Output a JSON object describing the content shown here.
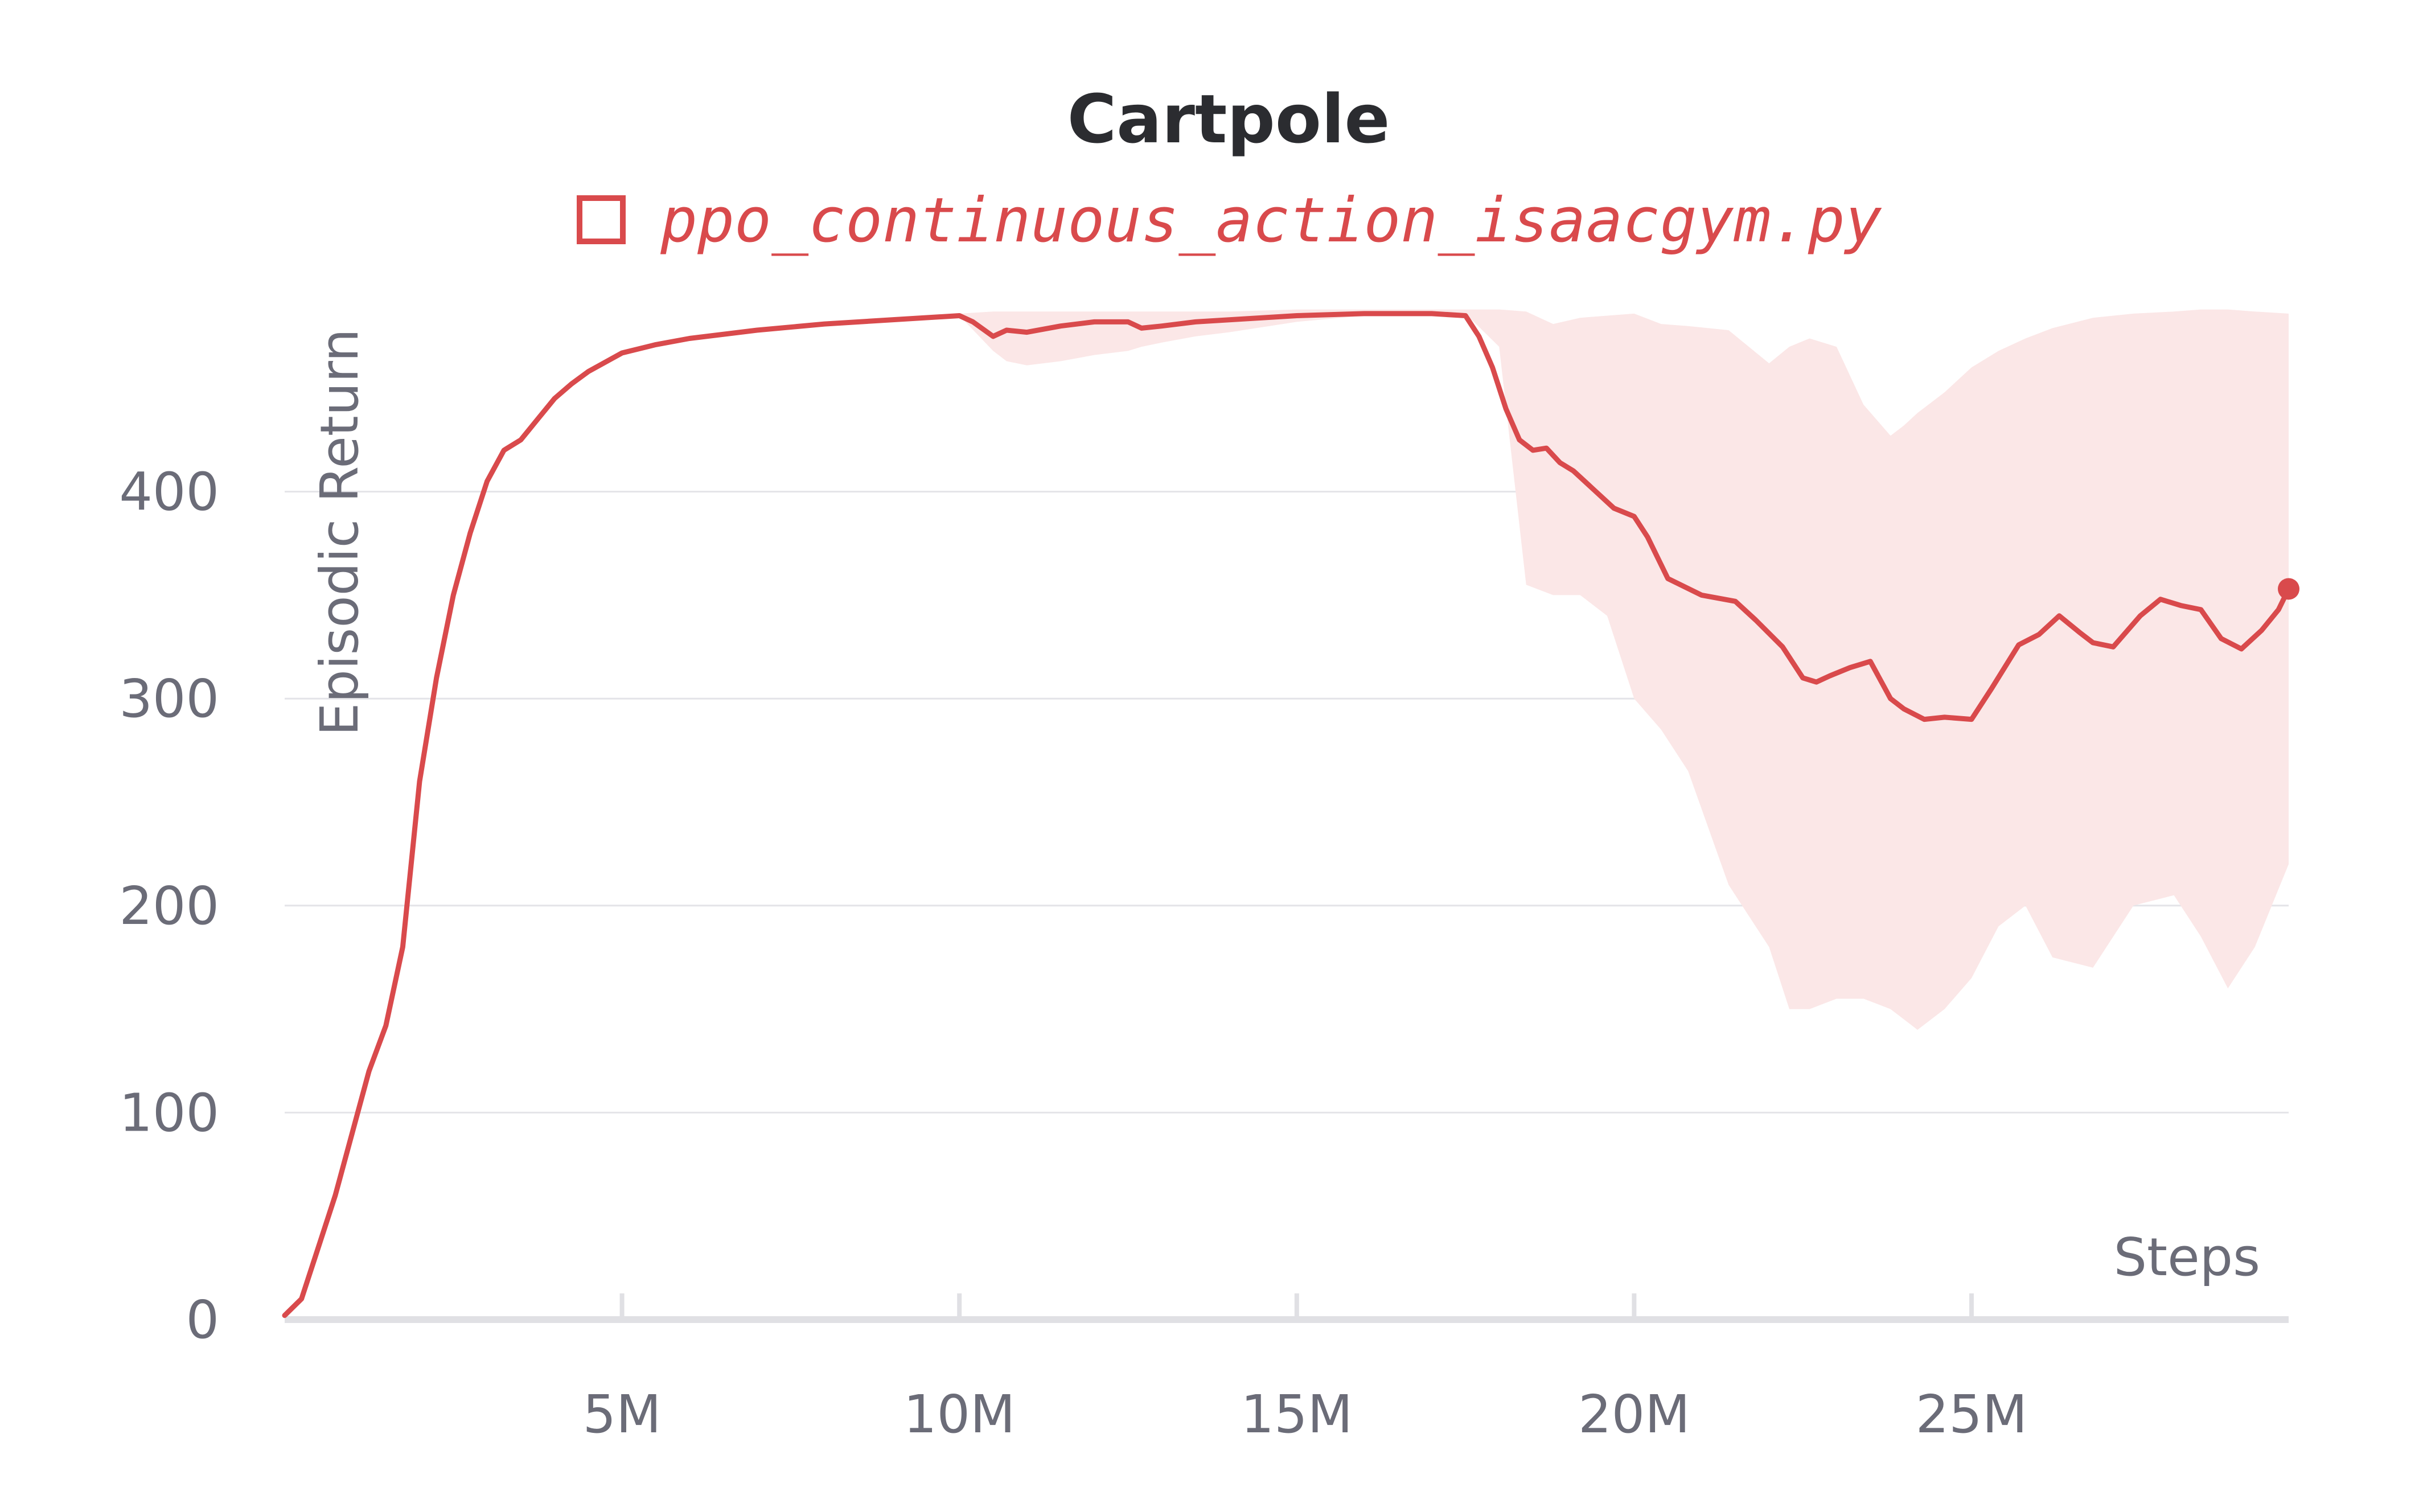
{
  "chart_data": {
    "type": "line",
    "title": "Cartpole",
    "xlabel": "Steps",
    "ylabel": "Episodic Return",
    "xlim": [
      0,
      29700000
    ],
    "ylim": [
      0,
      500
    ],
    "x_ticks": [
      {
        "value": 5000000,
        "label": "5M"
      },
      {
        "value": 10000000,
        "label": "10M"
      },
      {
        "value": 15000000,
        "label": "15M"
      },
      {
        "value": 20000000,
        "label": "20M"
      },
      {
        "value": 25000000,
        "label": "25M"
      }
    ],
    "y_ticks": [
      {
        "value": 0,
        "label": "0"
      },
      {
        "value": 100,
        "label": "100"
      },
      {
        "value": 200,
        "label": "200"
      },
      {
        "value": 300,
        "label": "300"
      },
      {
        "value": 400,
        "label": "400"
      }
    ],
    "grid": true,
    "legend_position": "top-center",
    "colors": {
      "line": "#d94a4c",
      "band": "#fbe7e7",
      "grid": "#e4e4e8",
      "axis": "#e0e0e4"
    },
    "series": [
      {
        "name": "ppo_continuous_action_isaacgym.py",
        "x": [
          0,
          250000,
          500000,
          750000,
          1000000,
          1250000,
          1500000,
          1750000,
          2000000,
          2250000,
          2500000,
          2750000,
          3000000,
          3250000,
          3500000,
          3750000,
          4000000,
          4250000,
          4500000,
          5000000,
          5500000,
          6000000,
          7000000,
          8000000,
          9000000,
          10000000,
          10200000,
          10500000,
          10700000,
          11000000,
          11500000,
          12000000,
          12500000,
          12700000,
          13000000,
          13500000,
          14000000,
          15000000,
          16000000,
          17000000,
          17500000,
          17700000,
          17900000,
          18100000,
          18300000,
          18500000,
          18700000,
          18900000,
          19100000,
          19400000,
          19700000,
          20000000,
          20200000,
          20500000,
          21000000,
          21500000,
          21800000,
          22200000,
          22500000,
          22700000,
          22900000,
          23200000,
          23500000,
          23800000,
          24000000,
          24300000,
          24600000,
          25000000,
          25300000,
          25700000,
          26000000,
          26300000,
          26600000,
          26800000,
          27100000,
          27500000,
          27800000,
          28100000,
          28400000,
          28700000,
          29000000,
          29300000,
          29550000,
          29700000
        ],
        "values": [
          2,
          10,
          35,
          60,
          90,
          120,
          142,
          180,
          260,
          310,
          350,
          380,
          405,
          420,
          425,
          435,
          445,
          452,
          458,
          467,
          471,
          474,
          478,
          481,
          483,
          485,
          482,
          475,
          478,
          477,
          480,
          482,
          482,
          479,
          480,
          482,
          483,
          485,
          486,
          486,
          485,
          475,
          460,
          440,
          425,
          420,
          421,
          414,
          410,
          401,
          392,
          388,
          378,
          358,
          350,
          347,
          338,
          325,
          310,
          308,
          311,
          315,
          318,
          300,
          295,
          290,
          291,
          290,
          305,
          326,
          331,
          340,
          332,
          327,
          325,
          340,
          348,
          345,
          343,
          329,
          324,
          333,
          343,
          353
        ]
      }
    ],
    "band": {
      "x": [
        10000000,
        10500000,
        10700000,
        11000000,
        11500000,
        12000000,
        12500000,
        12700000,
        13000000,
        13500000,
        14000000,
        15000000,
        16000000,
        17000000,
        17500000,
        18000000,
        18400000,
        18800000,
        19200000,
        19600000,
        20000000,
        20400000,
        20800000,
        21400000,
        22000000,
        22300000,
        22600000,
        23000000,
        23400000,
        23800000,
        24000000,
        24200000,
        24600000,
        25000000,
        25400000,
        25800000,
        26200000,
        26800000,
        27400000,
        28000000,
        28400000,
        28800000,
        29200000,
        29700000
      ],
      "upper": [
        486,
        487,
        487,
        487,
        487,
        487,
        487,
        487,
        487,
        487,
        487,
        488,
        488,
        488,
        488,
        488,
        487,
        481,
        484,
        485,
        486,
        481,
        480,
        478,
        462,
        470,
        474,
        470,
        442,
        427,
        432,
        438,
        448,
        460,
        468,
        474,
        479,
        484,
        486,
        487,
        488,
        488,
        487,
        486
      ],
      "lower": [
        485,
        468,
        463,
        461,
        463,
        466,
        468,
        470,
        472,
        475,
        477,
        482,
        485,
        486,
        486,
        470,
        355,
        350,
        350,
        340,
        300,
        285,
        265,
        210,
        180,
        150,
        150,
        155,
        155,
        150,
        145,
        140,
        150,
        165,
        190,
        200,
        175,
        170,
        200,
        205,
        185,
        160,
        180,
        220
      ]
    }
  }
}
